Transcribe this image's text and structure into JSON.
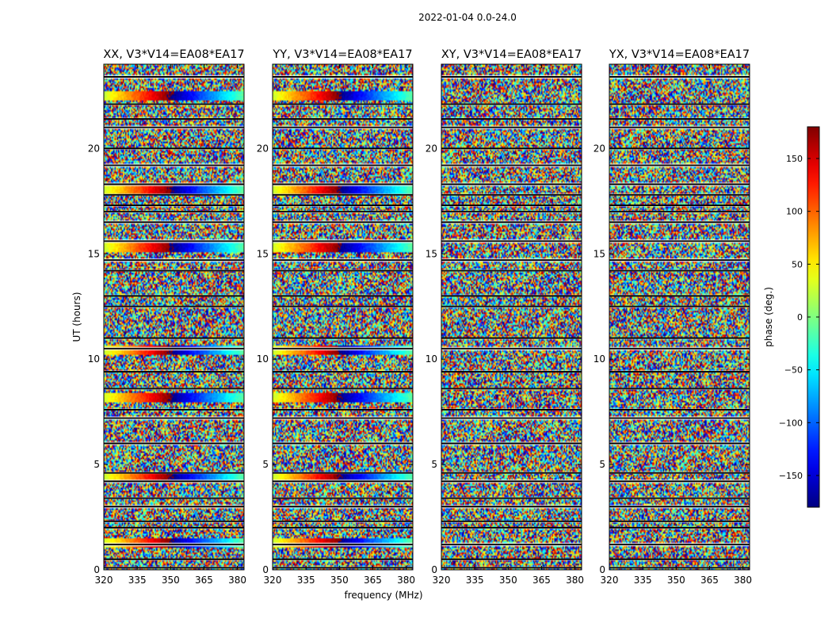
{
  "figure_title": "2022-01-04 0.0-24.0",
  "chart_data": {
    "type": "heatmap",
    "suptitle": "2022-01-04 0.0-24.0",
    "xlabel": "frequency (MHz)",
    "ylabel": "UT (hours)",
    "xlim": [
      320,
      383
    ],
    "ylim": [
      0,
      24
    ],
    "xticks": [
      320,
      335,
      350,
      365,
      380
    ],
    "yticks": [
      0,
      5,
      10,
      15,
      20
    ],
    "panels": [
      {
        "title": "XX, V3*V14=EA08*EA17",
        "polarization": "XX"
      },
      {
        "title": "YY, V3*V14=EA08*EA17",
        "polarization": "YY"
      },
      {
        "title": "XY, V3*V14=EA08*EA17",
        "polarization": "XY"
      },
      {
        "title": "YX, V3*V14=EA08*EA17",
        "polarization": "YX"
      }
    ],
    "colorbar": {
      "label": "phase (deg.)",
      "range": [
        -180,
        180
      ],
      "ticks": [
        -150,
        -100,
        -50,
        0,
        50,
        100,
        150
      ],
      "tick_labels": [
        "−150",
        "−100",
        "−50",
        "0",
        "50",
        "100",
        "150"
      ],
      "colormap": "jet"
    },
    "flagged_rows_ut": [
      0.1,
      0.5,
      1.2,
      2.0,
      2.3,
      3.0,
      3.4,
      4.2,
      4.6,
      6.0,
      7.2,
      7.6,
      8.6,
      9.4,
      10.5,
      11.0,
      12.5,
      13.0,
      14.2,
      14.7,
      15.6,
      16.5,
      17.0,
      17.3,
      17.8,
      18.3,
      19.2,
      20.0,
      21.0,
      21.4,
      22.1,
      23.4
    ],
    "coherent_phase_bands_ut": [
      {
        "ut": 1.3,
        "panels": [
          "XX",
          "YY"
        ]
      },
      {
        "ut": 4.4,
        "panels": [
          "XX",
          "YY"
        ]
      },
      {
        "ut": 8.2,
        "panels": [
          "XX",
          "YY"
        ]
      },
      {
        "ut": 10.4,
        "panels": [
          "XX",
          "YY"
        ]
      },
      {
        "ut": 15.3,
        "panels": [
          "XX",
          "YY"
        ]
      },
      {
        "ut": 18.1,
        "panels": [
          "XX",
          "YY"
        ]
      },
      {
        "ut": 22.5,
        "panels": [
          "XX",
          "YY"
        ]
      }
    ]
  }
}
